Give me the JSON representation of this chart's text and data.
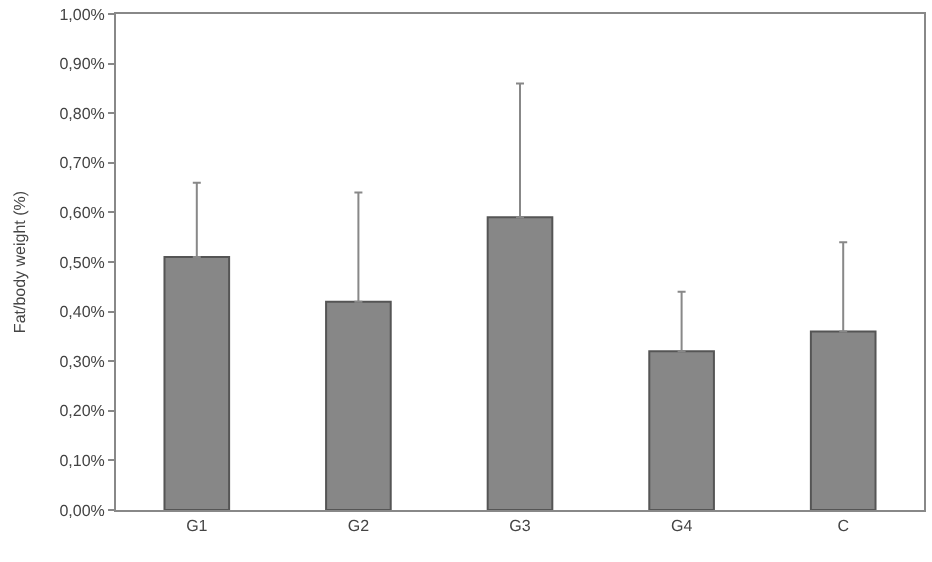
{
  "chart_data": {
    "type": "bar",
    "ylabel": "Fat/body weight (%)",
    "categories": [
      "G1",
      "G2",
      "G3",
      "G4",
      "C"
    ],
    "values": [
      0.51,
      0.42,
      0.59,
      0.32,
      0.36
    ],
    "errors": [
      [
        0.51,
        0.66
      ],
      [
        0.42,
        0.64
      ],
      [
        0.59,
        0.86
      ],
      [
        0.32,
        0.44
      ],
      [
        0.36,
        0.54
      ]
    ],
    "color": "#878787",
    "ylim": [
      0,
      1
    ],
    "yticks": [
      {
        "value": 0,
        "label": "0,00%"
      },
      {
        "value": 0.1,
        "label": "0,10%"
      },
      {
        "value": 0.2,
        "label": "0,20%"
      },
      {
        "value": 0.3,
        "label": "0,30%"
      },
      {
        "value": 0.4,
        "label": "0,40%"
      },
      {
        "value": 0.5,
        "label": "0,50%"
      },
      {
        "value": 0.6,
        "label": "0,60%"
      },
      {
        "value": 0.7,
        "label": "0,70%"
      },
      {
        "value": 0.8,
        "label": "0,80%"
      },
      {
        "value": 0.9,
        "label": "0,90%"
      },
      {
        "value": 1,
        "label": "1,00%"
      }
    ],
    "legend": false
  }
}
